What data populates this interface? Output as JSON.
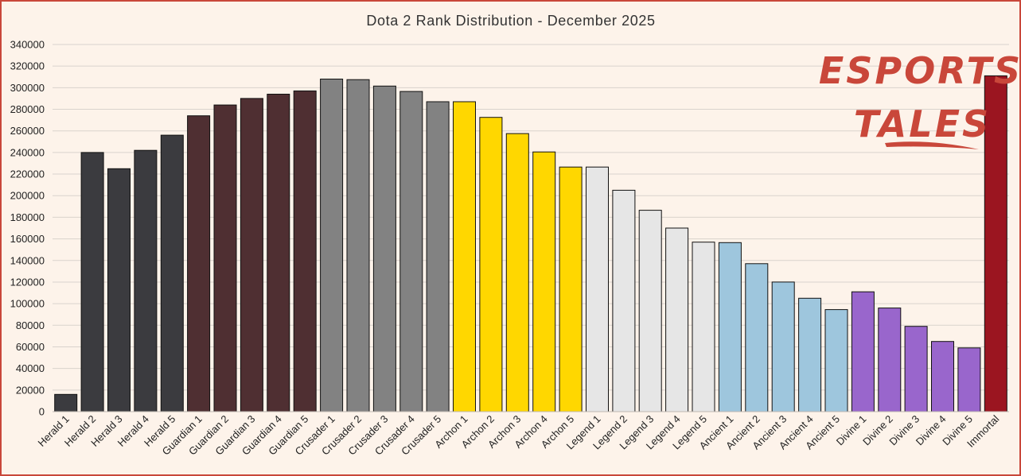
{
  "chart_data": {
    "type": "bar",
    "title": "Dota 2 Rank Distribution - December 2025",
    "xlabel": "",
    "ylabel": "",
    "ylim": [
      0,
      340000
    ],
    "yticks": [
      0,
      20000,
      40000,
      60000,
      80000,
      100000,
      120000,
      140000,
      160000,
      180000,
      200000,
      220000,
      240000,
      260000,
      280000,
      300000,
      320000,
      340000
    ],
    "grid": true,
    "legend": "none",
    "categories": [
      "Herald 1",
      "Herald 2",
      "Herald 3",
      "Herald 4",
      "Herald 5",
      "Guardian 1",
      "Guardian 2",
      "Guardian 3",
      "Guardian 4",
      "Guardian 5",
      "Crusader 1",
      "Crusader 2",
      "Crusader 3",
      "Crusader 4",
      "Crusader 5",
      "Archon 1",
      "Archon 2",
      "Archon 3",
      "Archon 4",
      "Archon 5",
      "Legend 1",
      "Legend 2",
      "Legend 3",
      "Legend 4",
      "Legend 5",
      "Ancient 1",
      "Ancient 2",
      "Ancient 3",
      "Ancient 4",
      "Ancient 5",
      "Divine 1",
      "Divine 2",
      "Divine 3",
      "Divine 4",
      "Divine 5",
      "Immortal"
    ],
    "values": [
      16000,
      240000,
      225000,
      242000,
      256000,
      274000,
      284000,
      290000,
      294000,
      297000,
      308000,
      307500,
      301500,
      296500,
      287000,
      287000,
      272500,
      257500,
      240500,
      226500,
      226500,
      205000,
      186500,
      170000,
      157000,
      156500,
      137000,
      120000,
      105000,
      94500,
      111000,
      96000,
      79000,
      65000,
      59000,
      311000
    ],
    "bar_colors": [
      "#3b3b3f",
      "#3b3b3f",
      "#3b3b3f",
      "#3b3b3f",
      "#3b3b3f",
      "#4f2f32",
      "#4f2f32",
      "#4f2f32",
      "#4f2f32",
      "#4f2f32",
      "#828282",
      "#828282",
      "#828282",
      "#828282",
      "#828282",
      "#ffd700",
      "#ffd700",
      "#ffd700",
      "#ffd700",
      "#ffd700",
      "#e6e6e6",
      "#e6e6e6",
      "#e6e6e6",
      "#e6e6e6",
      "#e6e6e6",
      "#9ec6dd",
      "#9ec6dd",
      "#9ec6dd",
      "#9ec6dd",
      "#9ec6dd",
      "#9966cc",
      "#9966cc",
      "#9966cc",
      "#9966cc",
      "#9966cc",
      "#9b1520"
    ]
  },
  "logo": {
    "line1": "ESPORTS",
    "line2": "TALES",
    "color": "#c9473a"
  },
  "colors": {
    "background": "#fdf3ea",
    "border": "#c9473a",
    "grid": "#d9d3cd"
  }
}
